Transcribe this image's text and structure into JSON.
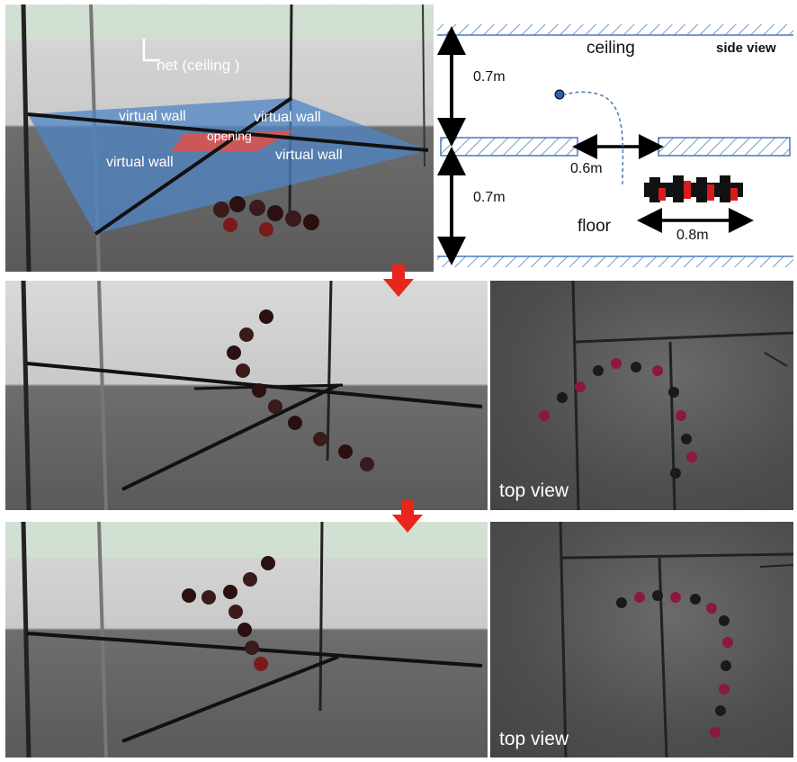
{
  "top_left": {
    "net_label": "net (ceiling )",
    "virtual_wall_labels": [
      "virtual wall",
      "virtual wall",
      "virtual wall",
      "virtual wall"
    ],
    "opening_label": "opening",
    "plane_color": "#4f86c6",
    "opening_color": "#d9534f"
  },
  "side_view": {
    "title": "side view",
    "ceiling_label": "ceiling",
    "floor_label": "floor",
    "upper_gap": "0.7m",
    "lower_gap": "0.7m",
    "opening_width": "0.6m",
    "robot_length": "0.8m",
    "hatch_color": "#4a79b8"
  },
  "row2": {
    "top_view_label": "top view"
  },
  "row3": {
    "top_view_label": "top view"
  },
  "arrow_color": "#e8261b"
}
